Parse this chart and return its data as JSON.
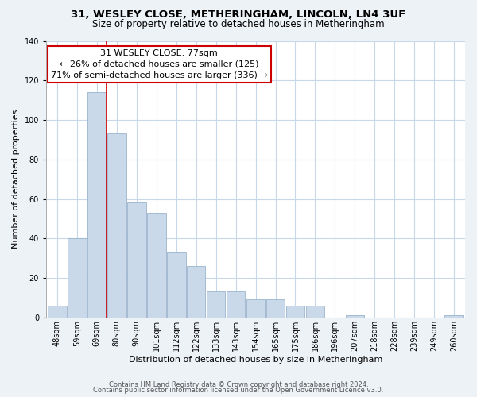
{
  "title": "31, WESLEY CLOSE, METHERINGHAM, LINCOLN, LN4 3UF",
  "subtitle": "Size of property relative to detached houses in Metheringham",
  "xlabel": "Distribution of detached houses by size in Metheringham",
  "ylabel": "Number of detached properties",
  "bar_labels": [
    "48sqm",
    "59sqm",
    "69sqm",
    "80sqm",
    "90sqm",
    "101sqm",
    "112sqm",
    "122sqm",
    "133sqm",
    "143sqm",
    "154sqm",
    "165sqm",
    "175sqm",
    "186sqm",
    "196sqm",
    "207sqm",
    "218sqm",
    "228sqm",
    "239sqm",
    "249sqm",
    "260sqm"
  ],
  "bar_values": [
    6,
    40,
    114,
    93,
    58,
    53,
    33,
    26,
    13,
    13,
    9,
    9,
    6,
    6,
    0,
    1,
    0,
    0,
    0,
    0,
    1
  ],
  "bar_color": "#c9d9ea",
  "bar_edge_color": "#9ab4cc",
  "vline_color": "#cc0000",
  "vline_position": 2.5,
  "ylim": [
    0,
    140
  ],
  "yticks": [
    0,
    20,
    40,
    60,
    80,
    100,
    120,
    140
  ],
  "annotation_title": "31 WESLEY CLOSE: 77sqm",
  "annotation_line1": "← 26% of detached houses are smaller (125)",
  "annotation_line2": "71% of semi-detached houses are larger (336) →",
  "annotation_box_color": "#ffffff",
  "annotation_box_edge": "#cc0000",
  "footer1": "Contains HM Land Registry data © Crown copyright and database right 2024.",
  "footer2": "Contains public sector information licensed under the Open Government Licence v3.0.",
  "background_color": "#edf2f7",
  "plot_background": "#ffffff",
  "grid_color": "#c8d8e8",
  "title_fontsize": 9.5,
  "subtitle_fontsize": 8.5,
  "ylabel_fontsize": 8,
  "xlabel_fontsize": 8,
  "tick_fontsize": 7,
  "ann_fontsize": 8,
  "footer_fontsize": 6
}
